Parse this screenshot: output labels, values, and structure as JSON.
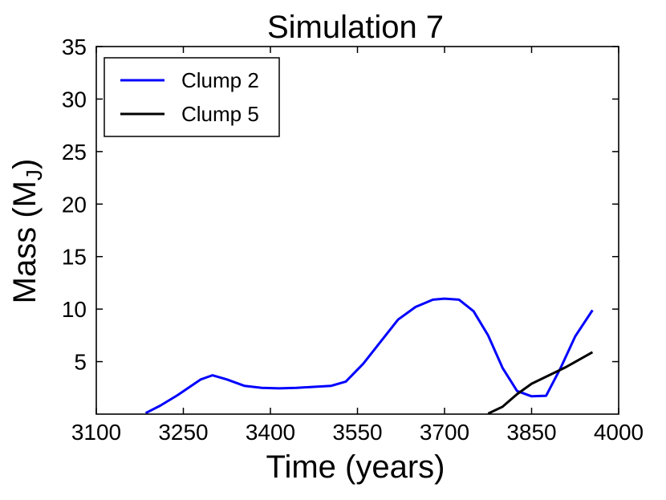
{
  "chart_data": {
    "type": "line",
    "title": "Simulation 7",
    "xlabel": "Time (years)",
    "ylabel_main": "Mass (M",
    "ylabel_sub": "J",
    "ylabel_close": ")",
    "xlim": [
      3100,
      4000
    ],
    "ylim": [
      0,
      35
    ],
    "xticks": [
      3100,
      3250,
      3400,
      3550,
      3700,
      3850,
      4000
    ],
    "yticks": [
      5,
      10,
      15,
      20,
      25,
      30,
      35
    ],
    "legend": "top-left",
    "grid": false,
    "series": [
      {
        "name": "Clump 2",
        "color": "#0000ff",
        "x": [
          3185,
          3210,
          3240,
          3280,
          3300,
          3325,
          3355,
          3385,
          3415,
          3445,
          3475,
          3505,
          3530,
          3560,
          3590,
          3620,
          3650,
          3680,
          3700,
          3725,
          3750,
          3775,
          3800,
          3825,
          3850,
          3875,
          3900,
          3925,
          3955
        ],
        "y": [
          0.1,
          0.8,
          1.8,
          3.3,
          3.7,
          3.3,
          2.7,
          2.5,
          2.45,
          2.5,
          2.6,
          2.7,
          3.1,
          4.8,
          6.9,
          9.0,
          10.2,
          10.9,
          11.0,
          10.9,
          9.8,
          7.5,
          4.4,
          2.2,
          1.7,
          1.75,
          4.4,
          7.4,
          9.9
        ]
      },
      {
        "name": "Clump 5",
        "color": "#000000",
        "x": [
          3775,
          3800,
          3825,
          3850,
          3880,
          3910,
          3955
        ],
        "y": [
          0.05,
          0.7,
          1.9,
          2.9,
          3.7,
          4.5,
          5.9
        ]
      }
    ]
  }
}
